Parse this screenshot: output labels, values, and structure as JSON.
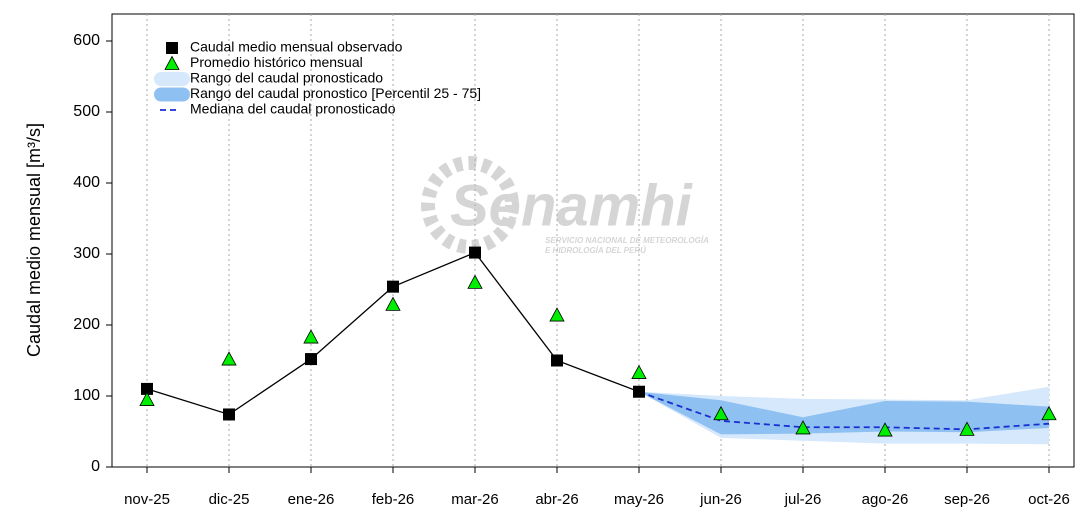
{
  "chart_data": {
    "type": "line",
    "ylabel": "Caudal medio mensual  [m³/s]",
    "categories": [
      "nov-25",
      "dic-25",
      "ene-26",
      "feb-26",
      "mar-26",
      "abr-26",
      "may-26",
      "jun-26",
      "jul-26",
      "ago-26",
      "sep-26",
      "oct-26"
    ],
    "series": [
      {
        "name": "Rango del caudal pronosticado",
        "kind": "band",
        "color": "#d6e8fb",
        "values": [
          null,
          null,
          null,
          null,
          null,
          null,
          106,
          100,
          96,
          95,
          94,
          113
        ],
        "lower": [
          null,
          null,
          null,
          null,
          null,
          null,
          106,
          41,
          37,
          33,
          33,
          32
        ]
      },
      {
        "name": "Rango del caudal pronostico [Percentil 25 - 75]",
        "kind": "band",
        "color": "#8fc0f2",
        "values": [
          null,
          null,
          null,
          null,
          null,
          null,
          106,
          94,
          70,
          93,
          92,
          85
        ],
        "lower": [
          null,
          null,
          null,
          null,
          null,
          null,
          106,
          46,
          47,
          50,
          49,
          55
        ]
      },
      {
        "name": "Mediana del caudal pronosticado",
        "kind": "dashed",
        "color": "#1a2fd0",
        "values": [
          null,
          null,
          null,
          null,
          null,
          null,
          106,
          65,
          56,
          56,
          53,
          61
        ]
      },
      {
        "name": "Caudal medio mensual observado",
        "kind": "squares",
        "color": "#000000",
        "values": [
          110,
          74,
          152,
          254,
          302,
          150,
          106,
          null,
          null,
          null,
          null,
          null
        ]
      },
      {
        "name": "Promedio histórico mensual",
        "kind": "triangles",
        "color": "#00ee00",
        "values": [
          95,
          152,
          183,
          229,
          260,
          214,
          133,
          75,
          55,
          52,
          53,
          75
        ]
      }
    ],
    "legend_order": [
      3,
      4,
      0,
      1,
      2
    ],
    "ylim": [
      0,
      600
    ],
    "yticks": [
      0,
      100,
      200,
      300,
      400,
      500,
      600
    ],
    "grid": "x-dotted",
    "watermark": {
      "name": "Senamhi",
      "line1": "SERVICIO NACIONAL DE METEOROLOGÍA",
      "line2": "E HIDROLOGÍA DEL PERÚ"
    }
  }
}
